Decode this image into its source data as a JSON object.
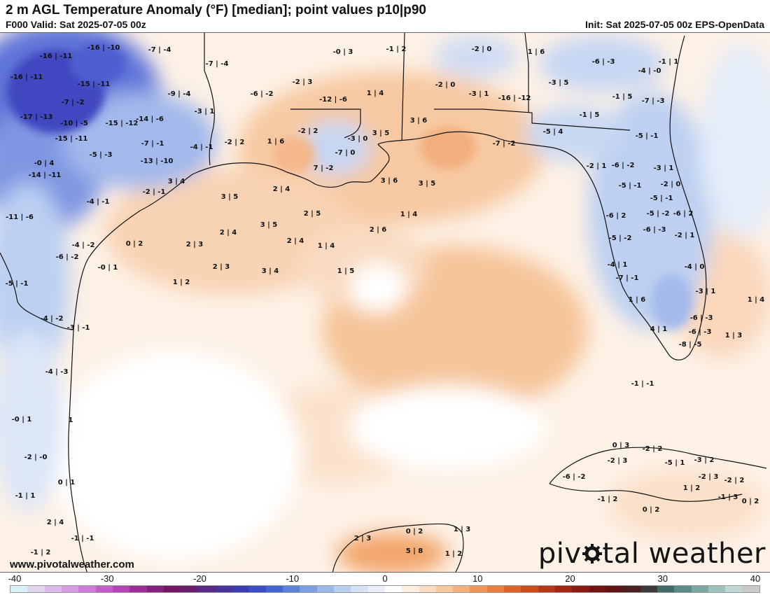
{
  "header": {
    "title": "2 m AGL Temperature Anomaly (°F) [median]; point values p10|p90",
    "valid": "F000 Valid: Sat 2025-07-05 00z",
    "init": "Init: Sat 2025-07-05 00z EPS-OpenData"
  },
  "credit": "www.pivotalweather.com",
  "logo": {
    "part1": "piv",
    "part2": "tal weather"
  },
  "colorbar": {
    "ticks": [
      "-40",
      "-30",
      "-20",
      "-10",
      "0",
      "10",
      "20",
      "30",
      "40"
    ],
    "colors": [
      "#d6f2f6",
      "#e0d4ee",
      "#dcb9e9",
      "#d79be3",
      "#cf7bda",
      "#c45dcb",
      "#b144b6",
      "#9a2e9b",
      "#86207f",
      "#731666",
      "#6a1e6d",
      "#5b2a86",
      "#4a339b",
      "#3c3cb1",
      "#3a4ec8",
      "#4266d4",
      "#5a83dc",
      "#7a9fe3",
      "#9bb8ea",
      "#b9cff0",
      "#d4e2f6",
      "#e8eff9",
      "#ffffff",
      "#fdeee0",
      "#fbdcc1",
      "#f8c79e",
      "#f4b07b",
      "#ef9859",
      "#e77e3b",
      "#dc6427",
      "#cd4b1c",
      "#b83617",
      "#a12613",
      "#8a1a12",
      "#741412",
      "#611413",
      "#4d2020",
      "#3c3a3a",
      "#3f6a66",
      "#5b8d86",
      "#7aa8a0",
      "#9cc2bb",
      "#c0d8d3",
      "#c9c9c9"
    ]
  },
  "points": [
    {
      "t": "-16 | -11"
    },
    {
      "t": "-16 | -10"
    },
    {
      "t": "-7 | -4"
    },
    {
      "t": "-0 | 3"
    },
    {
      "t": "-1 | 2"
    },
    {
      "t": "-2 | 0"
    },
    {
      "t": "1 | 6"
    },
    {
      "t": "-6 | -3"
    },
    {
      "t": "-1 | 1"
    },
    {
      "t": "-16 | -11"
    },
    {
      "t": "-7 | -4"
    },
    {
      "t": "-4 | -0"
    },
    {
      "t": "-15 | -11"
    },
    {
      "t": "-2 | 3"
    },
    {
      "t": "-3 | 5"
    },
    {
      "t": "-9 | -4"
    },
    {
      "t": "-6 | -2"
    },
    {
      "t": "1 | 4"
    },
    {
      "t": "-2 | 0"
    },
    {
      "t": "-3 | 1"
    },
    {
      "t": "-16 | -12"
    },
    {
      "t": "-1 | 5"
    },
    {
      "t": "-7 | -3"
    },
    {
      "t": "-7 | -2"
    },
    {
      "t": "-3 | 1"
    },
    {
      "t": "-17 | -13"
    },
    {
      "t": "-10 | -5"
    },
    {
      "t": "-15 | -12"
    },
    {
      "t": "-14 | -6"
    },
    {
      "t": "-12 | -6"
    },
    {
      "t": "-1 | 5"
    },
    {
      "t": "-15 | -11"
    },
    {
      "t": "3 | 6"
    },
    {
      "t": "-2 | 2"
    },
    {
      "t": "3 | 5"
    },
    {
      "t": "-5 | 4"
    },
    {
      "t": "-7 | -1"
    },
    {
      "t": "-4 | -1"
    },
    {
      "t": "-2 | 2"
    },
    {
      "t": "1 | 6"
    },
    {
      "t": "-3 | 0"
    },
    {
      "t": "-5 | -1"
    },
    {
      "t": "-7 | 0"
    },
    {
      "t": "-5 | -3"
    },
    {
      "t": "-7 | -2"
    },
    {
      "t": "-2 | 1"
    },
    {
      "t": "-13 | -10"
    },
    {
      "t": "-0 | 4"
    },
    {
      "t": "7 | -2"
    },
    {
      "t": "-6 | -2"
    },
    {
      "t": "-3 | 1"
    },
    {
      "t": "-14 | -11"
    },
    {
      "t": "3 | 4"
    },
    {
      "t": "3 | 6"
    },
    {
      "t": "3 | 5"
    },
    {
      "t": "-5 | -1"
    },
    {
      "t": "-2 | 0"
    },
    {
      "t": "-2 | -1"
    },
    {
      "t": "2 | 4"
    },
    {
      "t": "-5 | -1"
    },
    {
      "t": "-4 | -1"
    },
    {
      "t": "3 | 5"
    },
    {
      "t": "2 | 5"
    },
    {
      "t": "1 | 4"
    },
    {
      "t": "-5 | -2"
    },
    {
      "t": "-6 | 2"
    },
    {
      "t": "-11 | -6"
    },
    {
      "t": "3 | 5"
    },
    {
      "t": "2 | 6"
    },
    {
      "t": "-6 | 2"
    },
    {
      "t": "2 | 4"
    },
    {
      "t": "-6 | -3"
    },
    {
      "t": "-2 | 1"
    },
    {
      "t": "-4 | -2"
    },
    {
      "t": "0 | 2"
    },
    {
      "t": "2 | 3"
    },
    {
      "t": "2 | 4"
    },
    {
      "t": "1 | 4"
    },
    {
      "t": "-5 | -2"
    },
    {
      "t": "-6 | -2"
    },
    {
      "t": "-0 | 1"
    },
    {
      "t": "2 | 3"
    },
    {
      "t": "3 | 4"
    },
    {
      "t": "1 | 5"
    },
    {
      "t": "-4 | 1"
    },
    {
      "t": "-4 | 0"
    },
    {
      "t": "-5 | -1"
    },
    {
      "t": "1 | 2"
    },
    {
      "t": "-7 | -1"
    },
    {
      "t": "-3 | 1"
    },
    {
      "t": "1 | 6"
    },
    {
      "t": "1 | 4"
    },
    {
      "t": "-4 | -2"
    },
    {
      "t": "-3 | -1"
    },
    {
      "t": "-6 | -3"
    },
    {
      "t": "4 | 1"
    },
    {
      "t": "-6 | -3"
    },
    {
      "t": "1 | 3"
    },
    {
      "t": "-8 | -5"
    },
    {
      "t": "-4 | -3"
    },
    {
      "t": "-1 | -1"
    },
    {
      "t": "-0 | 1"
    },
    {
      "t": "1"
    },
    {
      "t": "0 | 3"
    },
    {
      "t": "-2 | 2"
    },
    {
      "t": "-2 | 3"
    },
    {
      "t": "-5 | 1"
    },
    {
      "t": "-3 | 2"
    },
    {
      "t": "-2 | -0"
    },
    {
      "t": "-6 | -2"
    },
    {
      "t": "-2 | 3"
    },
    {
      "t": "-2 | 2"
    },
    {
      "t": "0 | 1"
    },
    {
      "t": "1 | 2"
    },
    {
      "t": "-1 | 1"
    },
    {
      "t": "-1 | 2"
    },
    {
      "t": "-1 | 3"
    },
    {
      "t": "0 | 2"
    },
    {
      "t": "2 | 4"
    },
    {
      "t": "0 | 2"
    },
    {
      "t": "0 | 2"
    },
    {
      "t": "1 | 3"
    },
    {
      "t": "-1 | -1"
    },
    {
      "t": "2 | 3"
    },
    {
      "t": "-1 | 2"
    },
    {
      "t": "5 | 8"
    },
    {
      "t": "1 | 2"
    }
  ]
}
